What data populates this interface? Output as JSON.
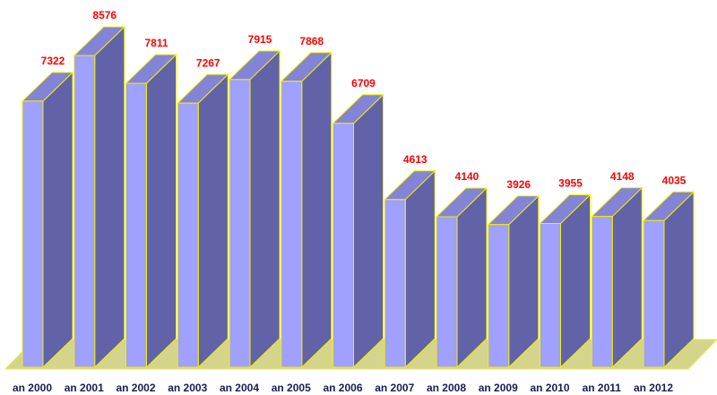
{
  "chart_data": {
    "type": "bar3d",
    "categories": [
      "an 2000",
      "an 2001",
      "an 2002",
      "an 2003",
      "an 2004",
      "an 2005",
      "an 2006",
      "an 2007",
      "an 2008",
      "an 2009",
      "an 2010",
      "an 2011",
      "an 2012"
    ],
    "values": [
      7322,
      8576,
      7811,
      7267,
      7915,
      7868,
      6709,
      4613,
      4140,
      3926,
      3955,
      4148,
      4035
    ],
    "color": "#a0a0ff"
  }
}
